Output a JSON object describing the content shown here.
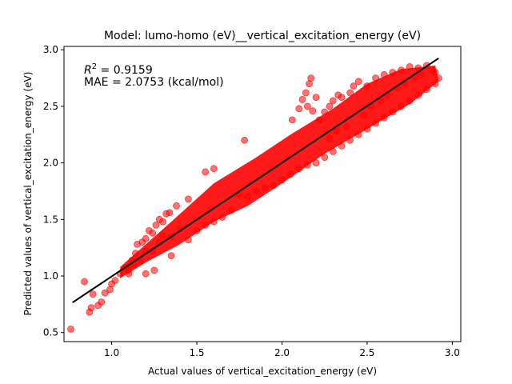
{
  "chart_data": {
    "type": "scatter",
    "title": "Model: lumo-homo (eV)__vertical_excitation_energy (eV)",
    "xlabel": "Actual values of vertical_excitation_energy (eV)",
    "ylabel": "Predicted values of vertical_excitation_energy (eV)",
    "xlim": [
      0.72,
      3.05
    ],
    "ylim": [
      0.42,
      3.03
    ],
    "xticks": [
      1.0,
      1.5,
      2.0,
      2.5,
      3.0
    ],
    "yticks": [
      0.5,
      1.0,
      1.5,
      2.0,
      2.5,
      3.0
    ],
    "xtick_labels": [
      "1.0",
      "1.5",
      "2.0",
      "2.5",
      "3.0"
    ],
    "ytick_labels": [
      "0.5",
      "1.0",
      "1.5",
      "2.0",
      "2.5",
      "3.0"
    ],
    "annotations": {
      "r2_prefix": "R",
      "r2_sup": "2",
      "r2_value": " = 0.9159",
      "mae": "MAE = 2.0753 (kcal/mol)"
    },
    "fit_line": {
      "x": [
        0.77,
        2.92
      ],
      "y": [
        0.765,
        2.925
      ]
    },
    "grid": false,
    "legend": "none",
    "colors": {
      "points": "#ff0000",
      "fit_line": "#000000"
    },
    "points": [
      [
        0.76,
        0.53
      ],
      [
        0.84,
        0.95
      ],
      [
        0.87,
        0.68
      ],
      [
        0.88,
        0.72
      ],
      [
        0.89,
        0.84
      ],
      [
        0.92,
        0.74
      ],
      [
        0.94,
        0.77
      ],
      [
        0.96,
        0.85
      ],
      [
        0.99,
        0.88
      ],
      [
        1.0,
        0.93
      ],
      [
        1.02,
        0.96
      ],
      [
        1.05,
        1.02
      ],
      [
        1.08,
        1.07
      ],
      [
        1.1,
        1.05
      ],
      [
        1.12,
        1.14
      ],
      [
        1.14,
        1.2
      ],
      [
        1.15,
        1.28
      ],
      [
        1.18,
        1.3
      ],
      [
        1.2,
        1.33
      ],
      [
        1.22,
        1.4
      ],
      [
        1.24,
        1.38
      ],
      [
        1.26,
        1.45
      ],
      [
        1.28,
        1.5
      ],
      [
        1.3,
        1.48
      ],
      [
        1.32,
        1.55
      ],
      [
        1.34,
        1.56
      ],
      [
        1.1,
        1.02
      ],
      [
        1.13,
        1.1
      ],
      [
        1.17,
        1.14
      ],
      [
        1.2,
        1.22
      ],
      [
        1.24,
        1.22
      ],
      [
        1.28,
        1.3
      ],
      [
        1.3,
        1.36
      ],
      [
        1.35,
        1.35
      ],
      [
        1.4,
        1.42
      ],
      [
        1.38,
        1.62
      ],
      [
        1.45,
        1.68
      ],
      [
        1.55,
        1.92
      ],
      [
        1.6,
        1.95
      ],
      [
        1.78,
        2.2
      ],
      [
        1.75,
        1.72
      ],
      [
        1.5,
        1.4
      ],
      [
        1.55,
        1.45
      ],
      [
        1.6,
        1.48
      ],
      [
        1.65,
        1.52
      ],
      [
        1.7,
        1.58
      ],
      [
        1.2,
        1.02
      ],
      [
        1.25,
        1.05
      ],
      [
        1.35,
        1.18
      ],
      [
        1.45,
        1.32
      ],
      [
        2.06,
        2.38
      ],
      [
        2.1,
        2.48
      ],
      [
        2.12,
        2.56
      ],
      [
        2.14,
        2.62
      ],
      [
        2.16,
        2.7
      ],
      [
        2.17,
        2.75
      ],
      [
        2.15,
        2.5
      ],
      [
        2.18,
        2.46
      ],
      [
        2.2,
        2.58
      ],
      [
        2.22,
        2.38
      ],
      [
        2.25,
        2.45
      ],
      [
        2.28,
        2.5
      ],
      [
        2.3,
        2.55
      ],
      [
        2.33,
        2.6
      ],
      [
        2.35,
        2.58
      ],
      [
        2.4,
        2.62
      ],
      [
        2.42,
        2.68
      ],
      [
        2.45,
        2.72
      ],
      [
        2.5,
        2.68
      ],
      [
        2.55,
        2.75
      ],
      [
        2.6,
        2.78
      ],
      [
        2.65,
        2.8
      ],
      [
        2.7,
        2.82
      ],
      [
        2.75,
        2.85
      ],
      [
        2.8,
        2.84
      ],
      [
        2.85,
        2.86
      ],
      [
        2.88,
        2.82
      ],
      [
        2.9,
        2.8
      ],
      [
        2.92,
        2.75
      ],
      [
        2.9,
        2.7
      ],
      [
        2.85,
        2.65
      ],
      [
        2.8,
        2.6
      ],
      [
        2.75,
        2.55
      ],
      [
        2.7,
        2.5
      ],
      [
        2.65,
        2.45
      ],
      [
        2.6,
        2.4
      ],
      [
        2.55,
        2.35
      ],
      [
        2.5,
        2.3
      ],
      [
        2.45,
        2.25
      ],
      [
        2.4,
        2.2
      ],
      [
        2.35,
        2.15
      ],
      [
        2.3,
        2.1
      ],
      [
        2.25,
        2.05
      ],
      [
        2.2,
        2.0
      ],
      [
        2.15,
        1.98
      ],
      [
        2.1,
        1.95
      ],
      [
        2.05,
        1.9
      ],
      [
        2.0,
        1.85
      ],
      [
        1.95,
        1.8
      ],
      [
        1.9,
        1.78
      ],
      [
        1.85,
        1.75
      ],
      [
        1.8,
        1.7
      ],
      [
        2.28,
        2.22
      ],
      [
        2.32,
        2.28
      ],
      [
        2.38,
        2.32
      ],
      [
        2.48,
        2.42
      ],
      [
        2.52,
        2.5
      ],
      [
        2.58,
        2.55
      ],
      [
        2.62,
        2.6
      ],
      [
        2.68,
        2.66
      ],
      [
        2.72,
        2.7
      ],
      [
        2.78,
        2.76
      ],
      [
        2.82,
        2.78
      ]
    ]
  }
}
